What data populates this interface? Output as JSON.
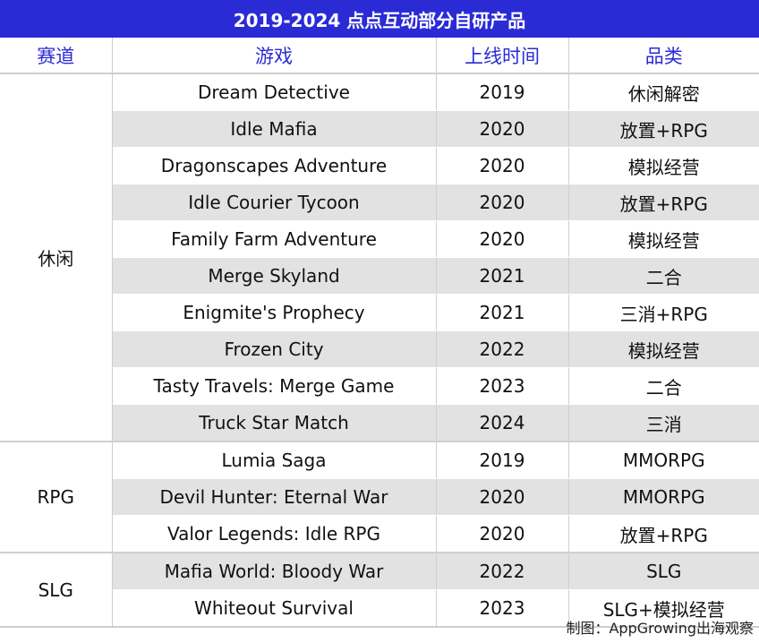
{
  "title": "2019-2024 点点互动部分自研产品",
  "headers": [
    "赛道",
    "游戏",
    "上线时间",
    "品类"
  ],
  "groups": [
    {
      "category": "休闲",
      "rows": [
        {
          "game": "Dream Detective",
          "year": "2019",
          "genre": "休闲解密"
        },
        {
          "game": "Idle Mafia",
          "year": "2020",
          "genre": "放置+RPG"
        },
        {
          "game": "Dragonscapes Adventure",
          "year": "2020",
          "genre": "模拟经营"
        },
        {
          "game": "Idle Courier Tycoon",
          "year": "2020",
          "genre": "放置+RPG"
        },
        {
          "game": "Family Farm Adventure",
          "year": "2020",
          "genre": "模拟经营"
        },
        {
          "game": "Merge Skyland",
          "year": "2021",
          "genre": "二合"
        },
        {
          "game": "Enigmite's Prophecy",
          "year": "2021",
          "genre": "三消+RPG"
        },
        {
          "game": "Frozen City",
          "year": "2022",
          "genre": "模拟经营"
        },
        {
          "game": "Tasty Travels: Merge Game",
          "year": "2023",
          "genre": "二合"
        },
        {
          "game": "Truck Star Match",
          "year": "2024",
          "genre": "三消"
        }
      ]
    },
    {
      "category": "RPG",
      "rows": [
        {
          "game": "Lumia Saga",
          "year": "2019",
          "genre": "MMORPG"
        },
        {
          "game": "Devil Hunter: Eternal War",
          "year": "2020",
          "genre": "MMORPG"
        },
        {
          "game": "Valor Legends: Idle RPG",
          "year": "2020",
          "genre": "放置+RPG"
        }
      ]
    },
    {
      "category": "SLG",
      "rows": [
        {
          "game": "Mafia World: Bloody War",
          "year": "2022",
          "genre": "SLG"
        },
        {
          "game": "Whiteout Survival",
          "year": "2023",
          "genre": "SLG+模拟经营"
        }
      ]
    }
  ],
  "footer": "制图：AppGrowing出海观察"
}
